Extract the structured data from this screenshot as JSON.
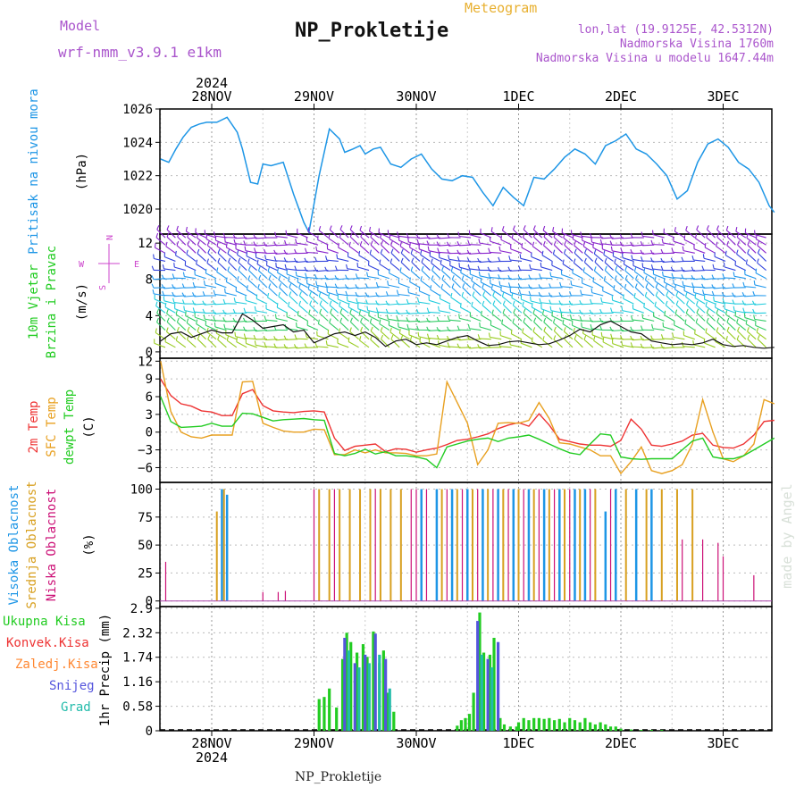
{
  "header": {
    "model_label": "Model",
    "model_name": "wrf-nmm_v3.9.1 e1km",
    "title": "NP_Prokletije",
    "subtitle": "Meteogram",
    "lonlat": "lon,lat (19.9125E, 42.5312N)",
    "elevation": "Nadmorska Visina 1760m",
    "model_elevation": "Nadmorska Visina u modelu 1647.44m",
    "watermark": "made by Angel",
    "footer": "NP_Prokletije",
    "year_top": "2024",
    "year_bottom": "2024"
  },
  "colors": {
    "pressure": "#1e96e6",
    "wind_label": "#22cc22",
    "compass": "#cc44cc",
    "temp": "#ee3333",
    "sfc": "#e8a020",
    "dew": "#22cc22",
    "cloud_high": "#1e96e6",
    "cloud_mid": "#d8a020",
    "cloud_low": "#cc1177",
    "precip_total": "#22cc22",
    "precip_conv": "#ee3333",
    "precip_frz": "#ff8833",
    "precip_snow": "#5555dd",
    "precip_grad": "#22bbaa"
  },
  "compass": {
    "n": "N",
    "s": "S",
    "w": "W",
    "e": "E"
  },
  "chart_data": [
    {
      "type": "line",
      "panel": "pressure",
      "ylabel": "Pritisak na nivou mora",
      "unit": "(hPa)",
      "x_days": [
        "28NOV",
        "29NOV",
        "30NOV",
        "1DEC",
        "2DEC",
        "3DEC"
      ],
      "ylim": [
        1018.5,
        1026
      ],
      "yticks": [
        "1020",
        "1022",
        "1024",
        "1026"
      ],
      "series": [
        {
          "x": [
            -0.5,
            -0.42,
            -0.35,
            -0.28,
            -0.2,
            -0.12,
            -0.05,
            0.05,
            0.15,
            0.25,
            0.3,
            0.38,
            0.45,
            0.5,
            0.58,
            0.7,
            0.8,
            0.9,
            0.95,
            1.05,
            1.15,
            1.25,
            1.3,
            1.38,
            1.45,
            1.5,
            1.58,
            1.65,
            1.75,
            1.85,
            1.95,
            2.05,
            2.15,
            2.25,
            2.35,
            2.45,
            2.55,
            2.65,
            2.75,
            2.85,
            2.95,
            3.05,
            3.15,
            3.25,
            3.35,
            3.45,
            3.55,
            3.65,
            3.75,
            3.85,
            3.95,
            4.05,
            4.15,
            4.25,
            4.35,
            4.45,
            4.55,
            4.65,
            4.75,
            4.85,
            4.95,
            5.05,
            5.15,
            5.25,
            5.35,
            5.45,
            5.5
          ],
          "values": [
            1023.0,
            1022.8,
            1023.6,
            1024.3,
            1024.9,
            1025.1,
            1025.2,
            1025.2,
            1025.5,
            1024.6,
            1023.6,
            1021.6,
            1021.5,
            1022.7,
            1022.6,
            1022.8,
            1020.9,
            1019.2,
            1018.6,
            1022.0,
            1024.8,
            1024.2,
            1023.4,
            1023.6,
            1023.8,
            1023.3,
            1023.6,
            1023.7,
            1022.7,
            1022.5,
            1023.0,
            1023.3,
            1022.4,
            1021.8,
            1021.7,
            1022.0,
            1021.9,
            1021.0,
            1020.2,
            1021.3,
            1020.7,
            1020.2,
            1021.9,
            1021.8,
            1022.4,
            1023.1,
            1023.6,
            1023.3,
            1022.7,
            1023.8,
            1024.1,
            1024.5,
            1023.6,
            1023.3,
            1022.7,
            1022.0,
            1020.6,
            1021.1,
            1022.8,
            1023.9,
            1024.2,
            1023.7,
            1022.8,
            1022.4,
            1021.6,
            1020.2,
            1019.8
          ]
        }
      ]
    },
    {
      "type": "barb",
      "panel": "wind",
      "ylabel": "10m Vjetar",
      "ylabel2": "Brzina i Pravac",
      "unit": "(m/s)",
      "ylim": [
        -0.7,
        13
      ],
      "yticks": [
        "0",
        "4",
        "8",
        "12"
      ],
      "series": [
        {
          "name": "speed",
          "x": [
            -0.5,
            -0.4,
            -0.3,
            -0.2,
            -0.1,
            0.0,
            0.1,
            0.2,
            0.3,
            0.4,
            0.5,
            0.6,
            0.7,
            0.8,
            0.9,
            1.0,
            1.1,
            1.2,
            1.3,
            1.4,
            1.5,
            1.6,
            1.7,
            1.8,
            1.9,
            2.0,
            2.1,
            2.2,
            2.3,
            2.4,
            2.5,
            2.6,
            2.7,
            2.8,
            2.9,
            3.0,
            3.1,
            3.2,
            3.3,
            3.4,
            3.5,
            3.6,
            3.7,
            3.8,
            3.9,
            4.0,
            4.1,
            4.2,
            4.3,
            4.4,
            4.5,
            4.6,
            4.7,
            4.8,
            4.9,
            5.0,
            5.1,
            5.2,
            5.3,
            5.4,
            5.5
          ],
          "values": [
            1.2,
            2.0,
            2.2,
            1.6,
            2.0,
            2.4,
            2.1,
            2.1,
            4.2,
            3.5,
            2.6,
            2.8,
            3.0,
            2.2,
            2.4,
            1.0,
            1.5,
            2.0,
            2.2,
            1.8,
            2.2,
            1.6,
            0.6,
            1.2,
            1.4,
            0.8,
            1.0,
            0.8,
            1.2,
            1.6,
            1.8,
            1.2,
            0.7,
            0.8,
            1.1,
            1.2,
            1.0,
            0.8,
            0.9,
            1.3,
            1.8,
            2.5,
            2.2,
            3.0,
            3.4,
            2.8,
            2.2,
            2.0,
            1.2,
            1.0,
            0.8,
            0.9,
            0.8,
            1.0,
            1.4,
            0.8,
            0.6,
            0.7,
            0.5,
            0.4,
            0.5
          ]
        }
      ]
    },
    {
      "type": "line",
      "panel": "temperature",
      "ylabel": "2m Temp",
      "ylabel2": "SFC Temp",
      "ylabel3": "dewpt Temp",
      "unit": "(C)",
      "ylim": [
        -8.5,
        12.5
      ],
      "yticks": [
        "12",
        "9",
        "6",
        "3",
        "0",
        "−3",
        "−6"
      ],
      "x": [
        -0.5,
        -0.4,
        -0.3,
        -0.2,
        -0.1,
        0.0,
        0.1,
        0.2,
        0.3,
        0.4,
        0.5,
        0.6,
        0.7,
        0.8,
        0.9,
        1.0,
        1.1,
        1.2,
        1.3,
        1.4,
        1.5,
        1.6,
        1.7,
        1.8,
        1.9,
        2.0,
        2.1,
        2.2,
        2.3,
        2.4,
        2.5,
        2.6,
        2.7,
        2.8,
        2.9,
        3.0,
        3.1,
        3.2,
        3.3,
        3.4,
        3.5,
        3.6,
        3.7,
        3.8,
        3.9,
        4.0,
        4.1,
        4.2,
        4.3,
        4.4,
        4.5,
        4.6,
        4.7,
        4.8,
        4.9,
        5.0,
        5.1,
        5.2,
        5.3,
        5.4,
        5.5
      ],
      "series": [
        {
          "name": "2m Temp",
          "values": [
            9.0,
            6.2,
            4.8,
            4.4,
            3.6,
            3.4,
            2.8,
            2.8,
            6.5,
            7.2,
            4.5,
            3.6,
            3.4,
            3.3,
            3.5,
            3.6,
            3.4,
            -1.0,
            -3.1,
            -2.4,
            -2.2,
            -2.0,
            -3.3,
            -2.8,
            -2.9,
            -3.4,
            -3.0,
            -2.7,
            -2.1,
            -1.4,
            -1.2,
            -0.8,
            -0.3,
            0.6,
            1.2,
            1.6,
            1.0,
            3.1,
            1.2,
            -1.2,
            -1.6,
            -2.0,
            -2.2,
            -2.2,
            -2.4,
            -1.4,
            2.2,
            0.5,
            -2.2,
            -2.4,
            -2.0,
            -1.5,
            -0.5,
            -0.2,
            -2.2,
            -2.6,
            -2.7,
            -2.0,
            -0.5,
            1.8,
            2.0
          ]
        },
        {
          "name": "SFC Temp",
          "values": [
            12.0,
            3.5,
            0.0,
            -0.8,
            -1.0,
            -0.5,
            -0.5,
            -0.5,
            8.5,
            8.6,
            1.5,
            0.8,
            0.2,
            0.0,
            0.0,
            0.5,
            0.4,
            -3.8,
            -3.8,
            -3.0,
            -3.5,
            -3.0,
            -3.5,
            -3.5,
            -3.6,
            -4.0,
            -4.0,
            -3.7,
            8.5,
            5.0,
            1.5,
            -5.5,
            -3.0,
            1.5,
            1.6,
            1.5,
            2.0,
            5.0,
            2.3,
            -1.8,
            -2.0,
            -2.5,
            -3.0,
            -4.0,
            -4.0,
            -7.0,
            -5.0,
            -2.5,
            -6.5,
            -7.0,
            -6.5,
            -5.5,
            -2.0,
            5.5,
            0.0,
            -4.5,
            -5.0,
            -4.0,
            -2.0,
            5.5,
            4.8
          ]
        },
        {
          "name": "dewpt Temp",
          "values": [
            6.0,
            1.8,
            0.8,
            0.9,
            1.0,
            1.5,
            1.0,
            1.0,
            3.2,
            3.1,
            2.5,
            1.9,
            2.1,
            2.2,
            2.3,
            2.1,
            2.0,
            -3.6,
            -4.0,
            -3.6,
            -2.9,
            -3.7,
            -3.3,
            -4.0,
            -4.0,
            -4.2,
            -4.6,
            -6.0,
            -2.5,
            -2.0,
            -1.5,
            -1.2,
            -1.0,
            -1.6,
            -1.0,
            -0.8,
            -0.5,
            -1.2,
            -2.0,
            -2.8,
            -3.5,
            -3.8,
            -2.0,
            -0.3,
            -0.5,
            -4.2,
            -4.5,
            -4.6,
            -4.5,
            -4.5,
            -4.5,
            -3.0,
            -1.5,
            -1.0,
            -4.2,
            -4.5,
            -4.5,
            -4.0,
            -3.0,
            -2.0,
            -1.0
          ]
        }
      ]
    },
    {
      "type": "bar",
      "panel": "clouds",
      "ylabel": "Visoka Oblacnost",
      "ylabel2": "Srednja Oblacnost",
      "ylabel3": "Niska Oblacnost",
      "unit": "(%)",
      "ylim": [
        0,
        100
      ],
      "yticks": [
        "0",
        "25",
        "50",
        "75",
        "100"
      ],
      "series": [
        {
          "name": "Visoka Oblacnost",
          "x": [
            0.1,
            0.15,
            2.05,
            2.2,
            2.35,
            2.5,
            2.65,
            2.8,
            2.95,
            3.1,
            3.25,
            3.4,
            3.55,
            3.65,
            3.85,
            3.95,
            4.15,
            4.3
          ],
          "values": [
            100,
            95,
            100,
            100,
            100,
            100,
            100,
            100,
            100,
            100,
            100,
            100,
            100,
            100,
            80,
            100,
            100,
            100
          ]
        },
        {
          "name": "Srednja Oblacnost",
          "x": [
            0.05,
            0.12,
            1.05,
            1.15,
            1.25,
            1.35,
            1.45,
            1.55,
            1.65,
            1.75,
            1.85,
            2.25,
            2.4,
            2.55,
            2.7,
            2.85,
            3.0,
            3.15,
            3.3,
            3.45,
            3.6,
            3.75,
            4.05,
            4.25,
            4.4,
            4.55,
            4.7
          ],
          "values": [
            80,
            100,
            100,
            100,
            100,
            100,
            100,
            100,
            100,
            100,
            100,
            100,
            100,
            100,
            100,
            100,
            100,
            100,
            100,
            100,
            100,
            100,
            100,
            100,
            100,
            100,
            100
          ]
        },
        {
          "name": "Niska Oblacnost",
          "x": [
            -0.45,
            0.5,
            0.65,
            0.72,
            1.0,
            1.2,
            1.6,
            1.95,
            2.0,
            2.1,
            2.3,
            2.45,
            2.6,
            2.75,
            2.9,
            3.05,
            3.2,
            3.35,
            3.5,
            3.7,
            3.9,
            4.6,
            4.8,
            4.95,
            5.0,
            5.3
          ],
          "values": [
            35,
            8,
            8,
            9,
            100,
            100,
            100,
            100,
            100,
            100,
            100,
            100,
            100,
            100,
            100,
            100,
            100,
            100,
            100,
            100,
            100,
            55,
            55,
            52,
            40,
            23
          ]
        }
      ]
    },
    {
      "type": "bar",
      "panel": "precipitation",
      "ylabel": "1hr Precip",
      "unit": "(mm)",
      "ylim": [
        0,
        2.9
      ],
      "yticks": [
        "0",
        "0.58",
        "1.16",
        "1.74",
        "2.32",
        "2.9"
      ],
      "legend": [
        "Ukupna Kisa",
        "Konvek.Kisa",
        "Zaledj.Kisa",
        "Snijeg",
        "Grad"
      ],
      "series": [
        {
          "name": "Ukupna Kisa",
          "x": [
            1.05,
            1.1,
            1.15,
            1.22,
            1.28,
            1.32,
            1.36,
            1.42,
            1.48,
            1.52,
            1.58,
            1.64,
            1.68,
            1.72,
            1.78,
            2.4,
            2.44,
            2.48,
            2.52,
            2.56,
            2.62,
            2.66,
            2.72,
            2.76,
            2.82,
            2.86,
            2.92,
            2.98,
            3.0,
            3.05,
            3.1,
            3.15,
            3.2,
            3.25,
            3.3,
            3.35,
            3.4,
            3.45,
            3.5,
            3.55,
            3.6,
            3.65,
            3.7,
            3.75,
            3.8,
            3.85,
            3.9,
            3.95,
            4.0,
            4.1,
            4.2,
            4.3,
            4.4
          ],
          "values": [
            0.75,
            0.8,
            1.0,
            0.55,
            1.7,
            2.32,
            2.1,
            1.85,
            2.05,
            1.75,
            2.35,
            1.6,
            1.9,
            0.9,
            0.45,
            0.12,
            0.25,
            0.3,
            0.4,
            0.9,
            2.8,
            1.85,
            1.8,
            2.2,
            0.3,
            0.15,
            0.1,
            0.1,
            0.2,
            0.3,
            0.25,
            0.3,
            0.3,
            0.28,
            0.3,
            0.25,
            0.28,
            0.2,
            0.3,
            0.25,
            0.2,
            0.3,
            0.2,
            0.15,
            0.2,
            0.15,
            0.1,
            0.1,
            0.05,
            0.03,
            0.02,
            0.02,
            0.02
          ]
        },
        {
          "name": "Snijeg",
          "x": [
            1.3,
            1.4,
            1.5,
            1.6,
            1.7,
            2.6,
            2.7,
            2.8
          ],
          "values": [
            2.2,
            1.6,
            1.8,
            2.3,
            1.7,
            2.6,
            1.7,
            2.1
          ]
        },
        {
          "name": "Grad",
          "x": [
            1.34,
            1.44,
            1.54,
            1.64,
            1.74,
            2.64,
            2.74
          ],
          "values": [
            1.9,
            1.5,
            1.6,
            1.8,
            1.0,
            1.8,
            1.5
          ]
        }
      ]
    }
  ]
}
